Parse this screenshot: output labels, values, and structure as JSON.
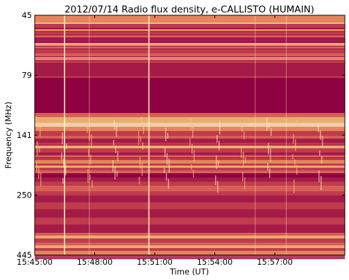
{
  "chart_data": {
    "type": "heatmap",
    "title": "2012/07/14  Radio flux density, e-CALLISTO (HUMAIN)",
    "xlabel": "Time (UT)",
    "ylabel": "Frequency (MHz)",
    "x_ticks": [
      "15:45:00",
      "15:48:00",
      "15:51:00",
      "15:54:00",
      "15:57:00"
    ],
    "x_tick_minutes": [
      0,
      3,
      6,
      9,
      12
    ],
    "x_range_minutes": [
      0,
      15.5
    ],
    "y_ticks": [
      "45",
      "79",
      "141",
      "250",
      "445"
    ],
    "y_axis_scale": "inverted",
    "colormap": [
      "#8b0040",
      "#a51d47",
      "#c4434e",
      "#df6e56",
      "#f19a60",
      "#f8c77a",
      "#fdf0b8"
    ],
    "background_color": "#a1104a",
    "grid": false,
    "legend": "none"
  }
}
